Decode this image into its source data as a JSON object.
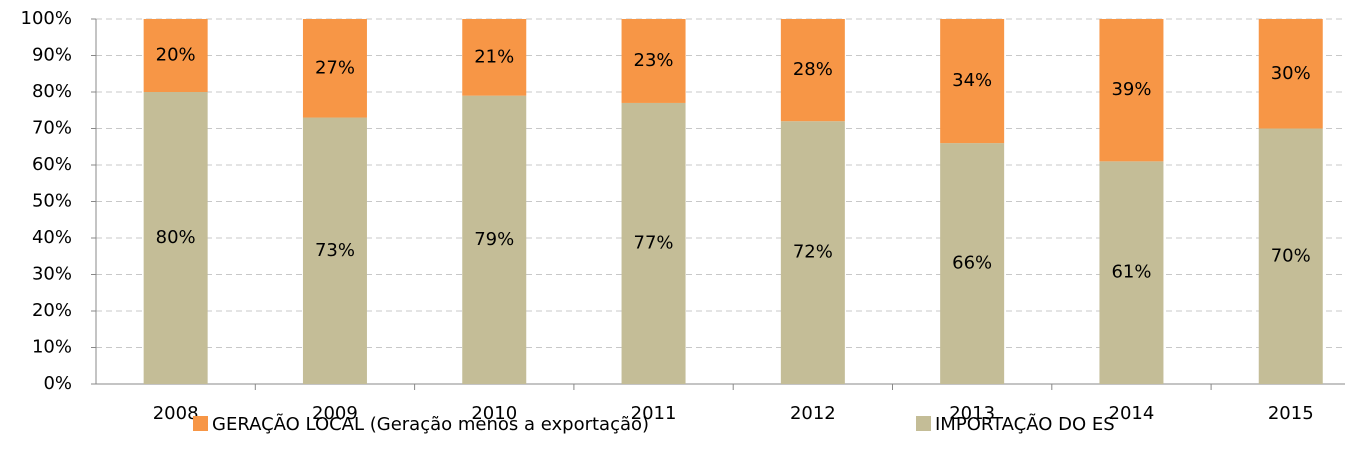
{
  "chart_data": {
    "type": "stacked_bar",
    "categories": [
      "2008",
      "2009",
      "2010",
      "2011",
      "2012",
      "2013",
      "2014",
      "2015"
    ],
    "series": [
      {
        "name": "GERAÇÃO LOCAL (Geração menos a exportação)",
        "color": "#f79646",
        "values": [
          20,
          27,
          21,
          23,
          28,
          34,
          39,
          30
        ],
        "value_labels": [
          "20%",
          "27%",
          "21%",
          "23%",
          "28%",
          "34%",
          "39%",
          "30%"
        ]
      },
      {
        "name": "IMPORTAÇÃO DO ES",
        "color": "#c4bd97",
        "values": [
          80,
          73,
          79,
          77,
          72,
          66,
          61,
          70
        ],
        "value_labels": [
          "80%",
          "73%",
          "79%",
          "77%",
          "72%",
          "66%",
          "61%",
          "70%"
        ]
      }
    ],
    "ylim": [
      0,
      100
    ],
    "yticks": [
      {
        "value": 0,
        "label": "0%"
      },
      {
        "value": 10,
        "label": "10%"
      },
      {
        "value": 20,
        "label": "20%"
      },
      {
        "value": 30,
        "label": "30%"
      },
      {
        "value": 40,
        "label": "40%"
      },
      {
        "value": 50,
        "label": "50%"
      },
      {
        "value": 60,
        "label": "60%"
      },
      {
        "value": 70,
        "label": "70%"
      },
      {
        "value": 80,
        "label": "80%"
      },
      {
        "value": 90,
        "label": "90%"
      },
      {
        "value": 100,
        "label": "100%"
      }
    ],
    "grid": true,
    "legend": "bottom"
  }
}
